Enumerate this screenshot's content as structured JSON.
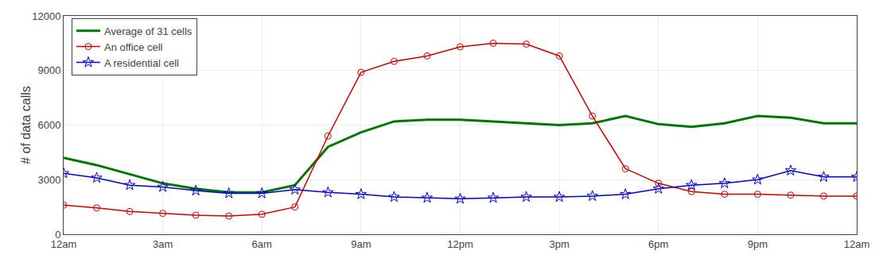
{
  "chart_data": {
    "type": "line",
    "y_label": "# of data calls",
    "x": [
      0,
      1,
      2,
      3,
      4,
      5,
      6,
      7,
      8,
      9,
      10,
      11,
      12,
      13,
      14,
      15,
      16,
      17,
      18,
      19,
      20,
      21,
      22,
      23,
      24
    ],
    "series": [
      {
        "name": "Average of 31 cells",
        "color": "#007700",
        "marker": "none",
        "values": [
          4200,
          3800,
          3300,
          2800,
          2500,
          2300,
          2300,
          2700,
          4800,
          5600,
          6200,
          6300,
          6300,
          6200,
          6100,
          6000,
          6100,
          6500,
          6050,
          5900,
          6100,
          6500,
          6400,
          6100,
          6100
        ]
      },
      {
        "name": "An office cell",
        "color": "#cc0000",
        "marker": "circle-open",
        "values": [
          1600,
          1450,
          1250,
          1150,
          1050,
          1000,
          1100,
          1500,
          5400,
          8900,
          9500,
          9800,
          10300,
          10500,
          10450,
          9800,
          6500,
          3600,
          2800,
          2350,
          2200,
          2200,
          2150,
          2100,
          2100
        ]
      },
      {
        "name": "A residential cell",
        "color": "#0000cc",
        "marker": "star-open",
        "values": [
          3350,
          3100,
          2700,
          2600,
          2400,
          2250,
          2250,
          2450,
          2300,
          2200,
          2050,
          2000,
          1950,
          2000,
          2050,
          2050,
          2100,
          2200,
          2500,
          2700,
          2800,
          3000,
          3500,
          3150,
          3150
        ]
      }
    ],
    "xlim": [
      0,
      24
    ],
    "xticks": [
      {
        "value": 0,
        "label": "12am"
      },
      {
        "value": 3,
        "label": "3am"
      },
      {
        "value": 6,
        "label": "6am"
      },
      {
        "value": 9,
        "label": "9am"
      },
      {
        "value": 12,
        "label": "12pm"
      },
      {
        "value": 15,
        "label": "3pm"
      },
      {
        "value": 18,
        "label": "6pm"
      },
      {
        "value": 21,
        "label": "9pm"
      },
      {
        "value": 24,
        "label": "12am"
      }
    ],
    "ylim": [
      0,
      12000
    ],
    "yticks": [
      0,
      3000,
      6000,
      9000,
      12000
    ],
    "grid": true,
    "legend": "upper left"
  }
}
